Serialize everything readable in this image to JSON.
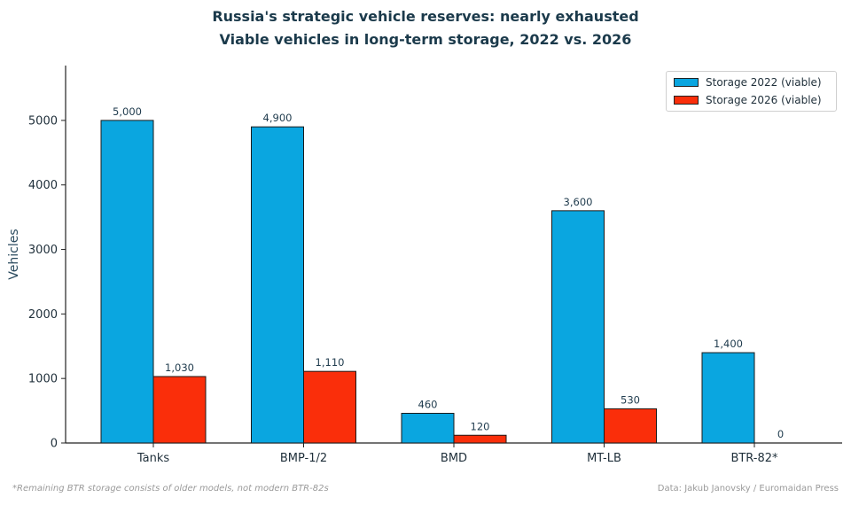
{
  "chart_data": {
    "type": "bar",
    "title": "Russia's strategic vehicle reserves: nearly exhausted",
    "subtitle": "Viable vehicles in long-term storage, 2022 vs. 2026",
    "xlabel": "",
    "ylabel": "Vehicles",
    "categories": [
      "Tanks",
      "BMP-1/2",
      "BMD",
      "MT-LB",
      "BTR-82*"
    ],
    "ylim": [
      0,
      5850
    ],
    "yticks": [
      0,
      1000,
      2000,
      3000,
      4000,
      5000
    ],
    "grid": false,
    "legend_position": "top-right",
    "series": [
      {
        "name": "Storage 2022 (viable)",
        "color": "#0aa6e0",
        "values": [
          5000,
          4900,
          460,
          3600,
          1400
        ],
        "labels": [
          "5,000",
          "4,900",
          "460",
          "3,600",
          "1,400"
        ]
      },
      {
        "name": "Storage 2026 (viable)",
        "color": "#fa2e0a",
        "values": [
          1030,
          1110,
          120,
          530,
          0
        ],
        "labels": [
          "1,030",
          "1,110",
          "120",
          "530",
          "0"
        ]
      }
    ]
  },
  "footnote": "*Remaining BTR storage consists of older models, not modern BTR-82s",
  "source": "Data: Jakub Janovsky / Euromaidan Press"
}
